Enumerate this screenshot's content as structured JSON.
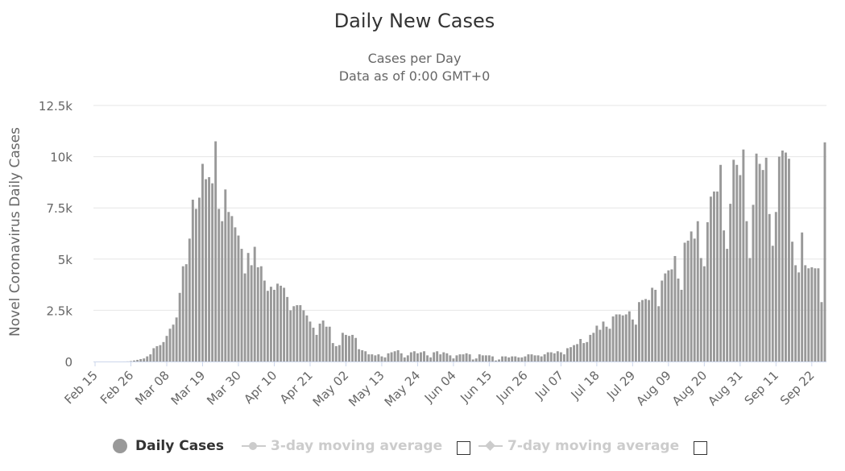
{
  "title": "Daily New Cases",
  "subtitle": [
    "Cases per Day",
    "Data as of 0:00 GMT+0"
  ],
  "legend": {
    "daily": "Daily Cases",
    "ma3": "3-day moving average",
    "ma7": "7-day moving average"
  },
  "colors": {
    "bar": "#999999",
    "grid": "#e6e6e6",
    "axis": "#ccd6eb",
    "text": "#333333",
    "muted": "#cccccc"
  },
  "chart_data": {
    "type": "bar",
    "title": "Daily New Cases",
    "subtitle": "Cases per Day",
    "xlabel": "",
    "ylabel": "Novel Coronavirus Daily Cases",
    "ylim": [
      0,
      12500
    ],
    "yticks": [
      0,
      2500,
      5000,
      7500,
      10000,
      12500
    ],
    "ytick_labels": [
      "0",
      "2.5k",
      "5k",
      "7.5k",
      "10k",
      "12.5k"
    ],
    "xtick_labels": [
      "Feb 15",
      "Feb 26",
      "Mar 08",
      "Mar 19",
      "Mar 30",
      "Apr 10",
      "Apr 21",
      "May 02",
      "May 13",
      "May 24",
      "Jun 04",
      "Jun 15",
      "Jun 26",
      "Jul 07",
      "Jul 18",
      "Jul 29",
      "Aug 09",
      "Aug 20",
      "Aug 31",
      "Sep 11",
      "Sep 22"
    ],
    "xtick_every": 11,
    "start_date": "Feb 15",
    "end_date": "Sep 22",
    "series": [
      {
        "name": "Daily Cases",
        "values": [
          0,
          0,
          0,
          0,
          0,
          0,
          0,
          0,
          0,
          1,
          5,
          20,
          50,
          80,
          120,
          150,
          250,
          350,
          650,
          750,
          800,
          950,
          1250,
          1600,
          1800,
          2150,
          3350,
          4650,
          4750,
          6000,
          7900,
          7450,
          8000,
          9650,
          8900,
          9000,
          8700,
          10750,
          7450,
          6850,
          8400,
          7300,
          7100,
          6550,
          6150,
          5500,
          4300,
          5300,
          4700,
          5600,
          4600,
          4650,
          3950,
          3450,
          3650,
          3500,
          3800,
          3700,
          3600,
          3150,
          2500,
          2700,
          2750,
          2750,
          2500,
          2250,
          1950,
          1650,
          1300,
          1850,
          2000,
          1700,
          1700,
          900,
          750,
          800,
          1400,
          1300,
          1250,
          1300,
          1150,
          600,
          550,
          500,
          350,
          350,
          300,
          350,
          250,
          200,
          400,
          450,
          500,
          550,
          400,
          200,
          300,
          450,
          500,
          400,
          450,
          500,
          300,
          200,
          450,
          500,
          350,
          450,
          400,
          300,
          150,
          300,
          350,
          350,
          400,
          350,
          100,
          150,
          350,
          300,
          300,
          300,
          250,
          50,
          100,
          250,
          250,
          200,
          250,
          250,
          200,
          200,
          250,
          350,
          350,
          300,
          300,
          250,
          350,
          450,
          450,
          400,
          500,
          450,
          350,
          650,
          700,
          800,
          850,
          1100,
          900,
          950,
          1300,
          1400,
          1750,
          1550,
          1950,
          1700,
          1600,
          2200,
          2300,
          2300,
          2250,
          2300,
          2450,
          2050,
          1800,
          2900,
          3000,
          3050,
          3000,
          3600,
          3500,
          2700,
          3950,
          4300,
          4450,
          4500,
          5150,
          4050,
          3500,
          5800,
          5900,
          6350,
          6000,
          6850,
          5050,
          4650,
          6800,
          8050,
          8300,
          8300,
          9600,
          6400,
          5500,
          7700,
          9850,
          9600,
          9100,
          10350,
          6850,
          5050,
          7650,
          10150,
          9650,
          9350,
          9950,
          7200,
          5650,
          7300,
          10000,
          10300,
          10200,
          9900,
          5850,
          4700,
          4350,
          6300,
          4700,
          4550,
          4600,
          4550,
          4550,
          2900,
          10700
        ]
      }
    ]
  }
}
